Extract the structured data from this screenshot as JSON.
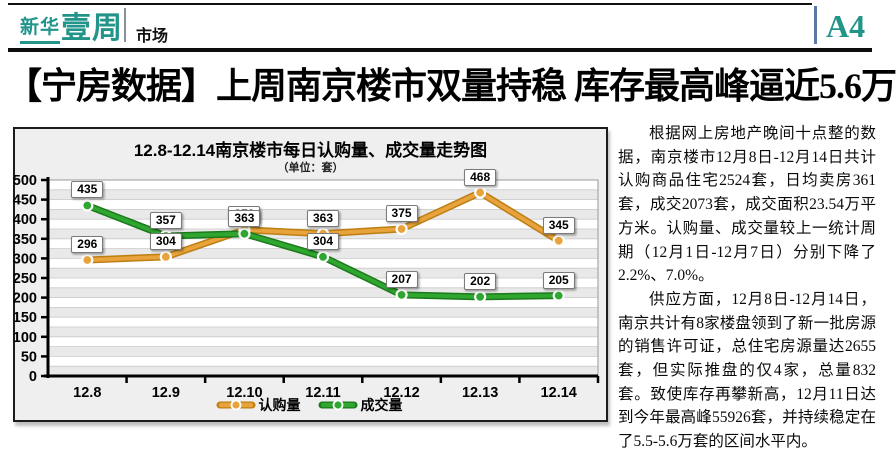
{
  "masthead": {
    "logo_prefix": "新华",
    "logo_main": "壹周",
    "section_label": "市场",
    "page_number": "A4",
    "brand_color": "#22948A"
  },
  "headline": "【宁房数据】上周南京楼市双量持稳 库存最高峰逼近5.6万",
  "chart_data": {
    "type": "line",
    "title": "12.8-12.14南京楼市每日认购量、成交量走势图",
    "subtitle": "（单位：套）",
    "categories": [
      "12.8",
      "12.9",
      "12.10",
      "12.11",
      "12.12",
      "12.13",
      "12.14"
    ],
    "series": [
      {
        "name": "认购量",
        "color": "#E8A33C",
        "edge_color": "#BD7F12",
        "values": [
          296,
          304,
          373,
          363,
          375,
          468,
          345
        ]
      },
      {
        "name": "成交量",
        "color": "#2FA62F",
        "edge_color": "#1C7A1C",
        "values": [
          435,
          357,
          363,
          304,
          207,
          202,
          205
        ]
      }
    ],
    "ylim": [
      0,
      500
    ],
    "ytick_step": 50,
    "grid": true,
    "data_labels": true,
    "legend_position": "bottom"
  },
  "article": {
    "paragraphs": [
      "根据网上房地产晚间十点整的数据，南京楼市12月8日-12月14日共计认购商品住宅2524套，日均卖房361套，成交2073套，成交面积23.54万平方米。认购量、成交量较上一统计周期（12月1日-12月7日）分别下降了2.2%、7.0%。",
      "供应方面，12月8日-12月14日，南京共计有8家楼盘领到了新一批房源的销售许可证，总住宅房源量达2655套，但实际推盘的仅4家，总量832套。致使库存再攀新高，12月11日达到今年最高峰55926套，并持续稳定在了5.5-5.6万套的区间水平内。"
    ]
  }
}
